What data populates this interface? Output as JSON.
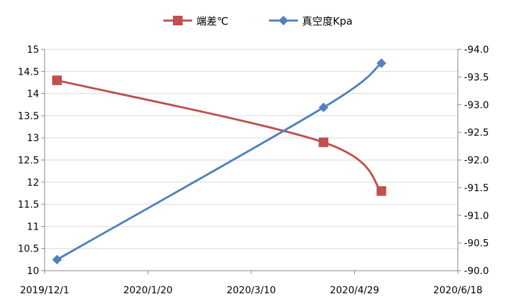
{
  "chart_data": {
    "type": "line",
    "x_type": "date",
    "xlim": [
      "2019-12-01",
      "2020-06-18"
    ],
    "x_ticks": [
      "2019/12/1",
      "2020/1/20",
      "2020/3/10",
      "2020/4/29",
      "2020/6/18"
    ],
    "left_axis": {
      "ylim": [
        10,
        15
      ],
      "ticks": [
        "10",
        "10.5",
        "11",
        "11.5",
        "12",
        "12.5",
        "13",
        "13.5",
        "14",
        "14.5",
        "15"
      ]
    },
    "right_axis": {
      "ylim": [
        -90.0,
        -94.0
      ],
      "reversed": true,
      "ticks": [
        "-90.0",
        "-90.5",
        "-91.0",
        "-91.5",
        "-92.0",
        "-92.5",
        "-93.0",
        "-93.5",
        "-94.0"
      ]
    },
    "grid": {
      "horizontal": true,
      "vertical": false
    },
    "legend": {
      "placement": "top-center",
      "entries": [
        "端差℃",
        "真空度Kpa"
      ]
    },
    "series": [
      {
        "name": "端差℃",
        "axis": "left",
        "color": "#c0504d",
        "marker": "square",
        "smooth": true,
        "points": [
          {
            "x": "2019-12-07",
            "y": 14.3
          },
          {
            "x": "2020-04-14",
            "y": 12.9
          },
          {
            "x": "2020-05-12",
            "y": 11.8
          }
        ]
      },
      {
        "name": "真空度Kpa",
        "axis": "right",
        "color": "#4f81bd",
        "marker": "diamond",
        "smooth": true,
        "points": [
          {
            "x": "2019-12-07",
            "y": -90.2
          },
          {
            "x": "2020-04-14",
            "y": -92.95
          },
          {
            "x": "2020-05-12",
            "y": -93.75
          }
        ]
      }
    ]
  }
}
